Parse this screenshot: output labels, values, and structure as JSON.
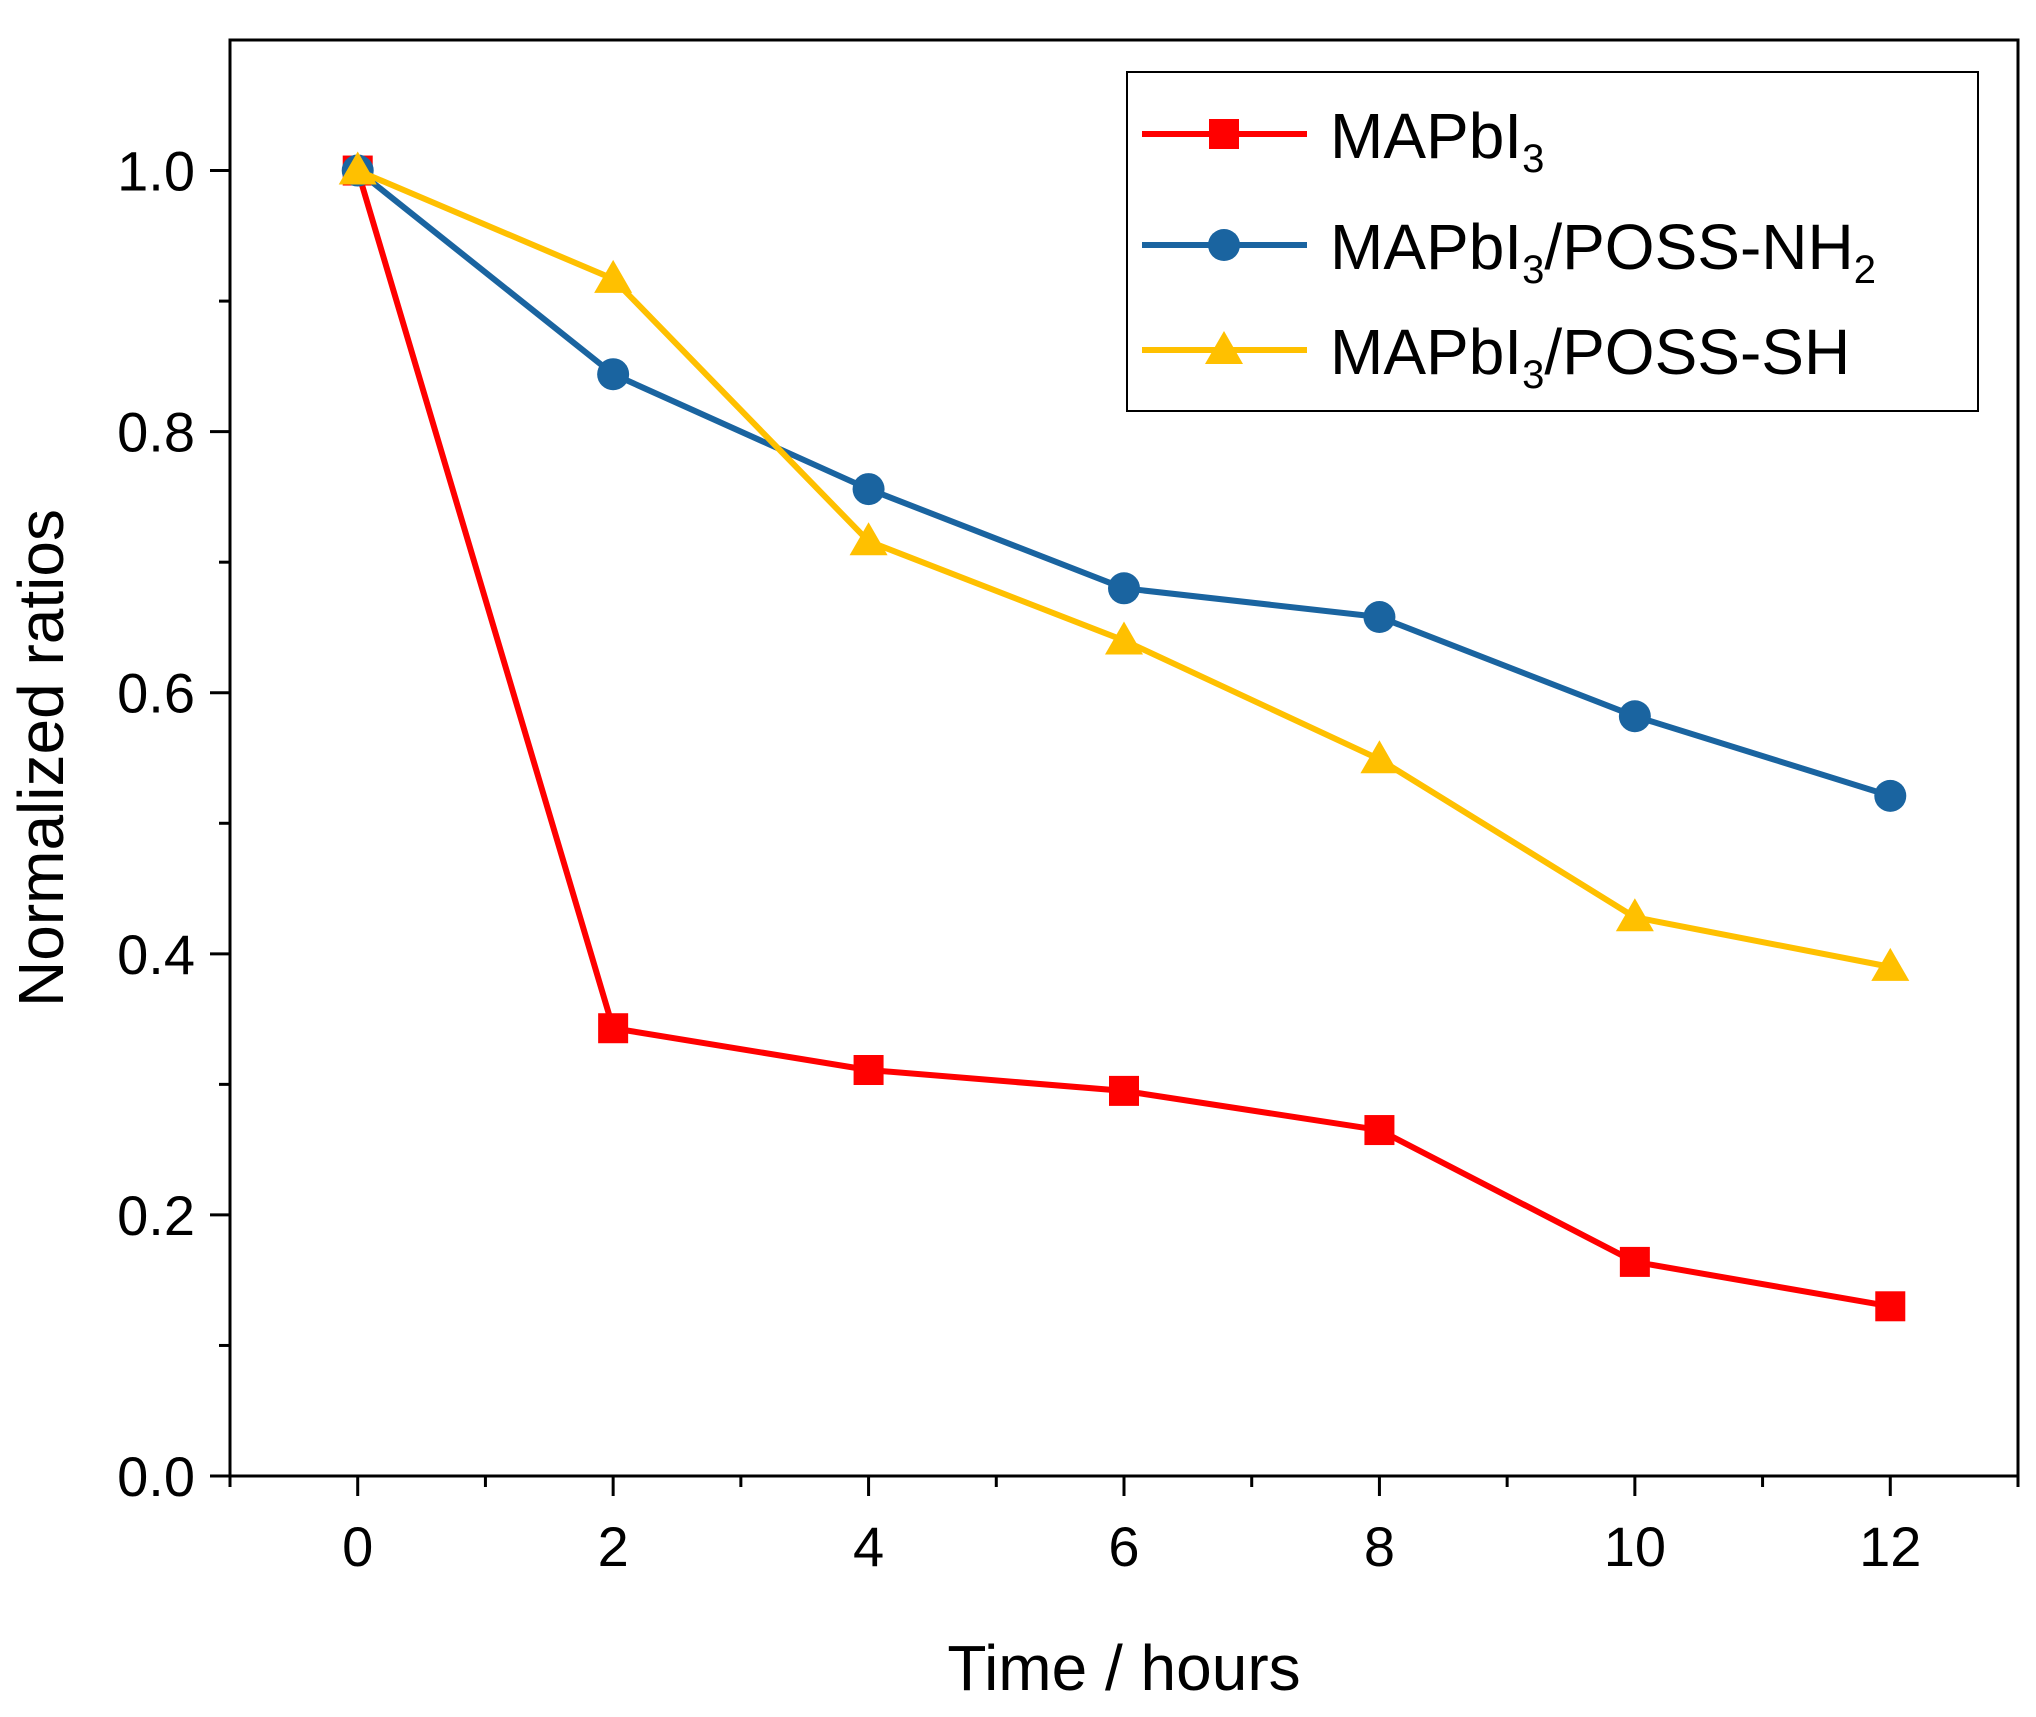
{
  "chart_data": {
    "type": "line",
    "title": "",
    "xlabel": "Time / hours",
    "ylabel": "Normalized ratios",
    "xlim": [
      -1,
      13
    ],
    "ylim": [
      0,
      1.1
    ],
    "x_ticks": [
      0,
      2,
      4,
      6,
      8,
      10,
      12
    ],
    "x_tick_labels": [
      "0",
      "2",
      "4",
      "6",
      "8",
      "10",
      "12"
    ],
    "y_ticks": [
      0.0,
      0.2,
      0.4,
      0.6,
      0.8,
      1.0
    ],
    "y_tick_labels": [
      "0.0",
      "0.2",
      "0.4",
      "0.6",
      "0.8",
      "1.0"
    ],
    "grid": false,
    "legend_position": "top-right",
    "x": [
      0,
      2,
      4,
      6,
      8,
      10,
      12
    ],
    "series": [
      {
        "name": "MAPbI3",
        "legend_main": "MAPbI",
        "legend_sub": "3",
        "legend_tail": "",
        "color": "#ff0000",
        "marker": "square",
        "values": [
          1.0,
          0.343,
          0.311,
          0.295,
          0.265,
          0.164,
          0.13
        ]
      },
      {
        "name": "MAPbI3/POSS-NH2",
        "legend_main": "MAPbI",
        "legend_sub": "3",
        "legend_tail": "/POSS-NH",
        "legend_sub2": "2",
        "color": "#1a64a0",
        "marker": "circle",
        "values": [
          1.0,
          0.844,
          0.756,
          0.68,
          0.658,
          0.582,
          0.521
        ]
      },
      {
        "name": "MAPbI3/POSS-SH",
        "legend_main": "MAPbI",
        "legend_sub": "3",
        "legend_tail": "/POSS-SH",
        "color": "#ffc000",
        "marker": "triangle",
        "values": [
          1.0,
          0.917,
          0.716,
          0.64,
          0.549,
          0.428,
          0.39
        ]
      }
    ]
  }
}
